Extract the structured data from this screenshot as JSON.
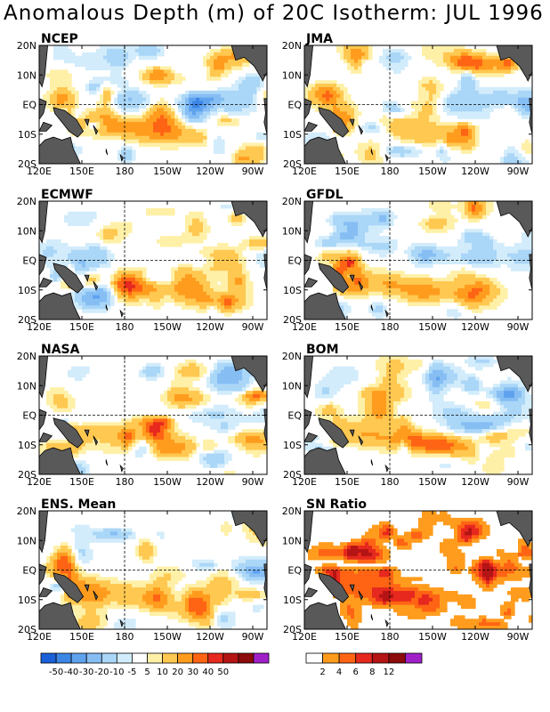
{
  "title": "Anomalous Depth (m) of 20C Isotherm: JUL 1996",
  "chart_data": {
    "type": "heatmap",
    "panels": [
      {
        "name": "NCEP"
      },
      {
        "name": "JMA"
      },
      {
        "name": "ECMWF"
      },
      {
        "name": "GFDL"
      },
      {
        "name": "NASA"
      },
      {
        "name": "BOM"
      },
      {
        "name": "ENS. Mean"
      },
      {
        "name": "SN Ratio"
      }
    ],
    "lon_ticks": [
      "120E",
      "150E",
      "180",
      "150W",
      "120W",
      "90W"
    ],
    "lat_ticks": [
      "20N",
      "10N",
      "EQ",
      "10S",
      "20S"
    ],
    "lon_range": [
      120,
      280
    ],
    "lat_range": [
      -20,
      20
    ],
    "anomaly_scale": {
      "labels": [
        "-50",
        "-40",
        "-30",
        "-20",
        "-10",
        "-5",
        "5",
        "10",
        "20",
        "30",
        "40",
        "50"
      ],
      "colors": [
        "#1a60d8",
        "#3c86e6",
        "#5fa2ee",
        "#86bef4",
        "#aad6f7",
        "#d2ecfb",
        "#ffffff",
        "#fff0a8",
        "#ffc850",
        "#ff9c1e",
        "#ff6414",
        "#e6281e",
        "#b41414",
        "#8c0a0a",
        "#a020c8"
      ]
    },
    "snr_scale": {
      "labels": [
        "2",
        "4",
        "6",
        "8",
        "12"
      ],
      "colors": [
        "#ffffff",
        "#ff9c1e",
        "#ff6414",
        "#e6281e",
        "#b41414",
        "#8c0a0a",
        "#a020c8"
      ]
    }
  }
}
